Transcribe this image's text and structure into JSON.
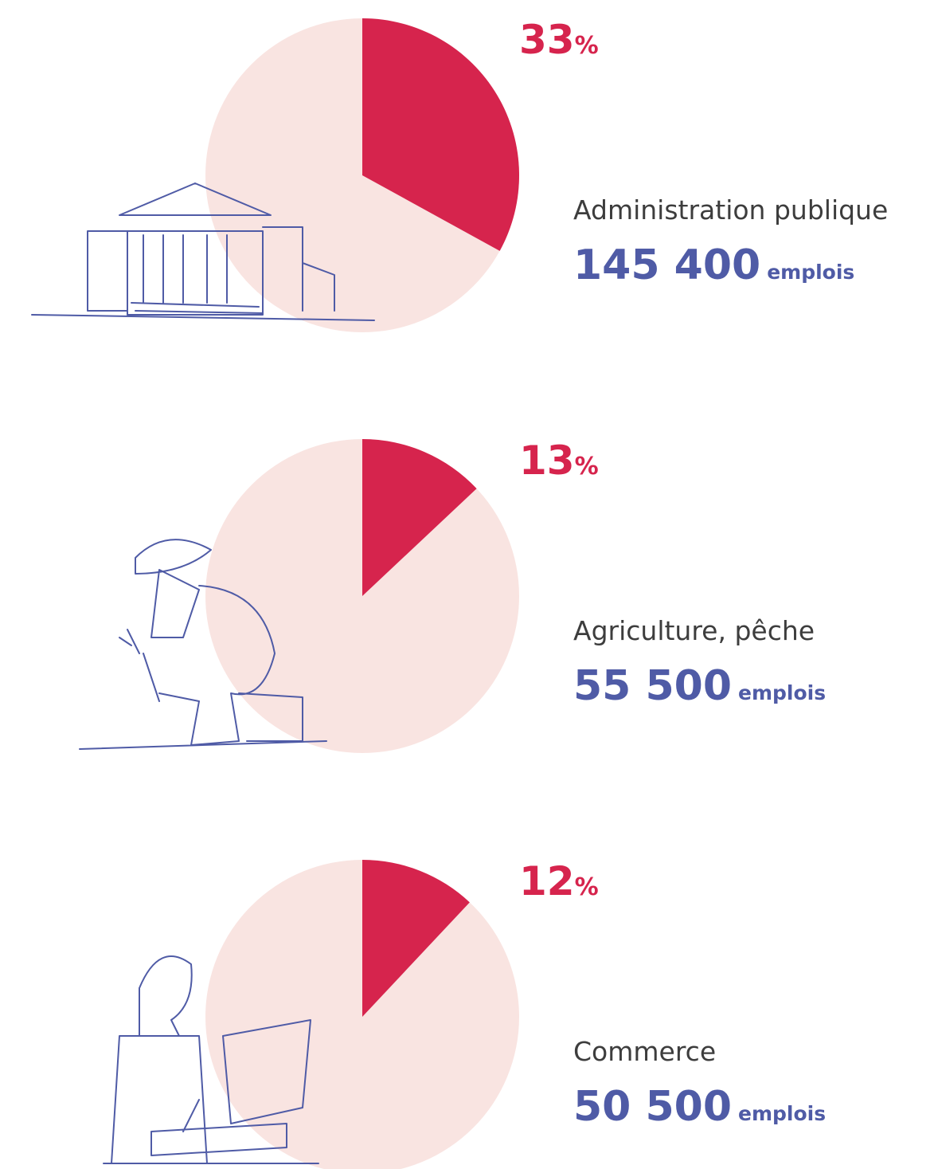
{
  "chart_data": [
    {
      "type": "pie",
      "categories": [
        "Administration publique"
      ],
      "values": [
        33
      ],
      "unit": "%",
      "jobs": "145 400",
      "jobs_unit": "emplois",
      "color": "#d6244d",
      "rest_color": "#f9e4e1"
    },
    {
      "type": "pie",
      "categories": [
        "Agriculture, pêche"
      ],
      "values": [
        13
      ],
      "unit": "%",
      "jobs": "55 500",
      "jobs_unit": "emplois",
      "color": "#d6244d",
      "rest_color": "#f9e4e1"
    },
    {
      "type": "pie",
      "categories": [
        "Commerce"
      ],
      "values": [
        12
      ],
      "unit": "%",
      "jobs": "50 500",
      "jobs_unit": "emplois",
      "color": "#d6244d",
      "rest_color": "#f9e4e1"
    }
  ]
}
